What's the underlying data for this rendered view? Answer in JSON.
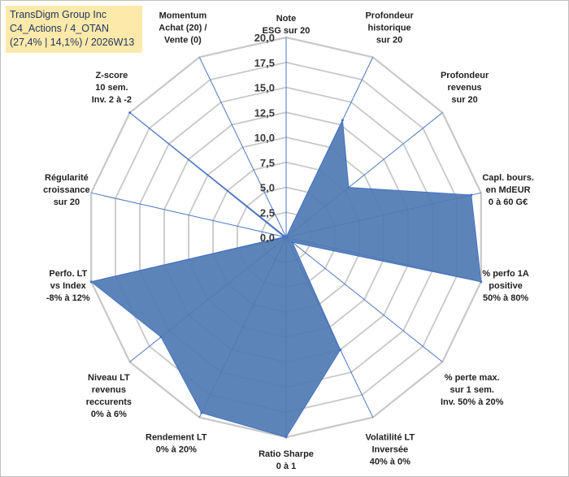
{
  "title_lines": [
    "TransDigm Group Inc",
    "C4_Actions / 4_OTAN",
    "(27,4% | 14,1%) / 2026W13"
  ],
  "chart_data": {
    "type": "radar",
    "r_range": [
      0,
      20
    ],
    "r_ticks": [
      "0,0",
      "2,5",
      "5,0",
      "7,5",
      "10,0",
      "12,5",
      "15,0",
      "17,5",
      "20,0"
    ],
    "grid": true,
    "legend": "none",
    "colors": {
      "fill": "#4f7ab3",
      "stroke": "#4472c4",
      "grid": "#c8c8c8",
      "spoke": "#4a78c2"
    },
    "axes": [
      {
        "lines": [
          "Note",
          "ESG sur 20"
        ],
        "value": 0
      },
      {
        "lines": [
          "Profondeur",
          "historique",
          "sur 20"
        ],
        "value": 13
      },
      {
        "lines": [
          "Profondeur",
          "revenus",
          "sur 20"
        ],
        "value": 8
      },
      {
        "lines": [
          "Capl. bours.",
          "en MdEUR",
          "0 à 60 G€"
        ],
        "value": 19
      },
      {
        "lines": [
          "% perfo 1A",
          "positive",
          "50% à 80%"
        ],
        "value": 20
      },
      {
        "lines": [
          "% perte max.",
          "sur 1 sem.",
          "Inv. 50% à 20%"
        ],
        "value": 0.8
      },
      {
        "lines": [
          "Volatilité LT",
          "Inversée",
          "40% à 0%"
        ],
        "value": 12.5
      },
      {
        "lines": [
          "Ratio Sharpe",
          "0 à 1"
        ],
        "value": 20
      },
      {
        "lines": [
          "Rendement LT",
          "0% à 20%"
        ],
        "value": 19.5
      },
      {
        "lines": [
          "Niveau LT",
          "revenus",
          "reccurents",
          "0% à 6%"
        ],
        "value": 16
      },
      {
        "lines": [
          "Perfo. LT",
          "vs Index",
          "-8% à 12%"
        ],
        "value": 20
      },
      {
        "lines": [
          "Régularité",
          "croissance",
          "sur 20"
        ],
        "value": 0.2
      },
      {
        "lines": [
          "Z-score",
          "10 sem.",
          "Inv. 2 à -2"
        ],
        "value": 20
      },
      {
        "lines": [
          "Momentum",
          "Achat (20) /",
          "Vente (0)"
        ],
        "value": 0
      }
    ]
  }
}
